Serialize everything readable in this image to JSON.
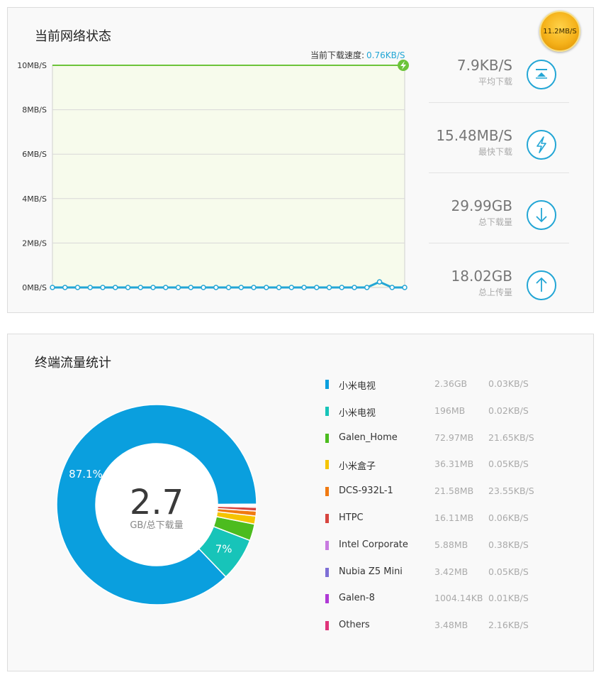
{
  "status_panel": {
    "title": "当前网络状态",
    "badge_speed": "11.2MB/S",
    "current_speed_label": "当前下载速度:",
    "current_speed_value": "0.76KB/S",
    "stats": [
      {
        "value": "7.9KB/S",
        "label": "平均下载",
        "icon": "average-icon"
      },
      {
        "value": "15.48MB/S",
        "label": "最快下载",
        "icon": "lightning-icon"
      },
      {
        "value": "29.99GB",
        "label": "总下载量",
        "icon": "download-arrow-icon"
      },
      {
        "value": "18.02GB",
        "label": "总上传量",
        "icon": "upload-arrow-icon"
      }
    ]
  },
  "chart_data": [
    {
      "type": "line",
      "y_ticks": [
        "0MB/S",
        "2MB/S",
        "4MB/S",
        "6MB/S",
        "8MB/S",
        "10MB/S"
      ],
      "ylim": [
        0,
        10
      ],
      "grid": true,
      "series": [
        {
          "color": "#23a6d5",
          "values": [
            0,
            0,
            0,
            0,
            0,
            0,
            0,
            0,
            0,
            0,
            0,
            0,
            0,
            0,
            0,
            0,
            0,
            0,
            0,
            0,
            0,
            0,
            0,
            0,
            0,
            0,
            0.25,
            0,
            0
          ]
        }
      ],
      "max_line": {
        "value": 10,
        "color": "#6cc43a"
      }
    },
    {
      "type": "pie",
      "center_value": "2.7",
      "center_unit": "GB/总下载量",
      "slices": [
        {
          "name": "小米电视",
          "size": "2.36GB",
          "speed": "0.03KB/S",
          "percent": 87.1,
          "color": "#0a9fde",
          "label": "87.1%"
        },
        {
          "name": "小米电视",
          "size": "196MB",
          "speed": "0.02KB/S",
          "percent": 7.0,
          "color": "#17c4b9",
          "label": "7%"
        },
        {
          "name": "Galen_Home",
          "size": "72.97MB",
          "speed": "21.65KB/S",
          "percent": 2.7,
          "color": "#4cbc1f",
          "label": ""
        },
        {
          "name": "小米盒子",
          "size": "36.31MB",
          "speed": "0.05KB/S",
          "percent": 1.3,
          "color": "#f5c400",
          "label": ""
        },
        {
          "name": "DCS-932L-1",
          "size": "21.58MB",
          "speed": "23.55KB/S",
          "percent": 0.8,
          "color": "#f07a12",
          "label": ""
        },
        {
          "name": "HTPC",
          "size": "16.11MB",
          "speed": "0.06KB/S",
          "percent": 0.6,
          "color": "#d7453f",
          "label": ""
        },
        {
          "name": "Intel Corporate",
          "size": "5.88MB",
          "speed": "0.38KB/S",
          "percent": 0.2,
          "color": "#c87be0",
          "label": ""
        },
        {
          "name": "Nubia Z5 Mini",
          "size": "3.42MB",
          "speed": "0.05KB/S",
          "percent": 0.1,
          "color": "#7e6fd6",
          "label": ""
        },
        {
          "name": "Galen-8",
          "size": "1004.14KB",
          "speed": "0.01KB/S",
          "percent": 0.05,
          "color": "#b03ad6",
          "label": ""
        },
        {
          "name": "Others",
          "size": "3.48MB",
          "speed": "2.16KB/S",
          "percent": 0.15,
          "color": "#e0357a",
          "label": ""
        }
      ]
    }
  ],
  "traffic_panel": {
    "title": "终端流量统计"
  }
}
